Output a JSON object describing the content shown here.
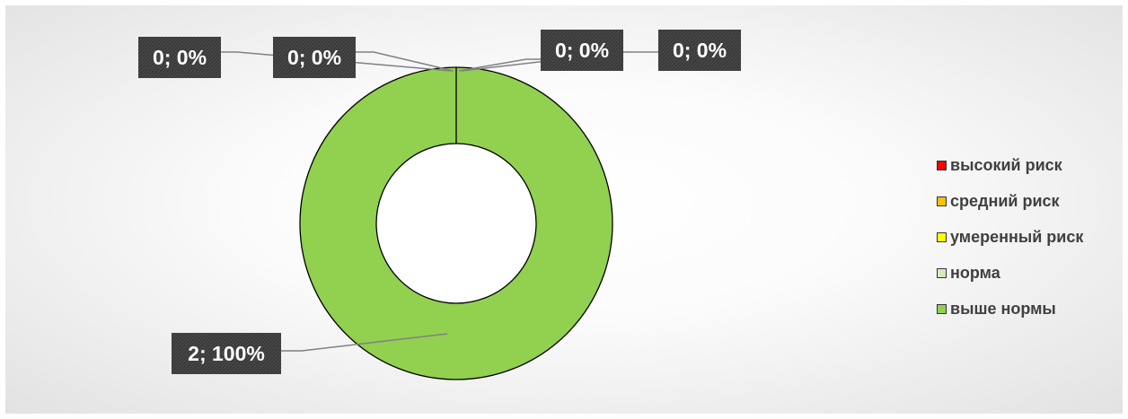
{
  "chart_data": {
    "type": "pie",
    "variant": "donut",
    "title": "",
    "categories": [
      "высокий риск",
      "средний риск",
      "умеренный риск",
      "норма",
      "выше нормы"
    ],
    "values": [
      0,
      0,
      0,
      0,
      2
    ],
    "percents": [
      "0%",
      "0%",
      "0%",
      "0%",
      "100%"
    ],
    "data_labels": [
      "0; 0%",
      "0; 0%",
      "0; 0%",
      "0; 0%",
      "2; 100%"
    ],
    "colors": [
      "#ff0000",
      "#ffc000",
      "#ffff00",
      "#d4ebc0",
      "#92d050"
    ],
    "legend_position": "right"
  }
}
